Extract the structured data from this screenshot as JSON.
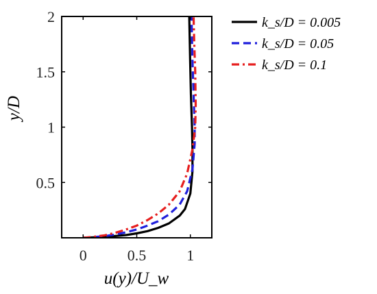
{
  "chart_data": {
    "type": "line",
    "xlabel": "u(y)/U_w",
    "ylabel": "y/D",
    "xlim": [
      -0.2,
      1.2
    ],
    "ylim": [
      0,
      2
    ],
    "xticks": [
      0,
      0.5,
      1
    ],
    "yticks": [
      0.5,
      1,
      1.5,
      2
    ],
    "xtick_labels": [
      "0",
      "0.5",
      "1"
    ],
    "ytick_labels": [
      "0.5",
      "1",
      "1.5",
      "2"
    ],
    "grid": false,
    "legend_position": "outside-top-right",
    "series": [
      {
        "name": "k_s/D = 0.005",
        "color": "#000000",
        "style": "solid",
        "points": [
          [
            0.0,
            0.0
          ],
          [
            0.1,
            0.004
          ],
          [
            0.2,
            0.009
          ],
          [
            0.3,
            0.016
          ],
          [
            0.4,
            0.025
          ],
          [
            0.5,
            0.04
          ],
          [
            0.6,
            0.06
          ],
          [
            0.7,
            0.09
          ],
          [
            0.8,
            0.13
          ],
          [
            0.9,
            0.2
          ],
          [
            0.95,
            0.26
          ],
          [
            1.0,
            0.4
          ],
          [
            1.02,
            0.6
          ],
          [
            1.02,
            0.8
          ],
          [
            1.015,
            1.0
          ],
          [
            1.005,
            1.3
          ],
          [
            0.998,
            1.6
          ],
          [
            0.99,
            2.0
          ]
        ]
      },
      {
        "name": "k_s/D = 0.05",
        "color": "#1f1fdc",
        "style": "dashed",
        "points": [
          [
            0.0,
            0.0
          ],
          [
            0.1,
            0.006
          ],
          [
            0.2,
            0.015
          ],
          [
            0.3,
            0.03
          ],
          [
            0.4,
            0.05
          ],
          [
            0.5,
            0.075
          ],
          [
            0.6,
            0.11
          ],
          [
            0.7,
            0.15
          ],
          [
            0.8,
            0.21
          ],
          [
            0.9,
            0.3
          ],
          [
            0.97,
            0.42
          ],
          [
            1.02,
            0.62
          ],
          [
            1.04,
            0.85
          ],
          [
            1.04,
            1.0
          ],
          [
            1.03,
            1.3
          ],
          [
            1.02,
            1.6
          ],
          [
            1.01,
            2.0
          ]
        ]
      },
      {
        "name": "k_s/D = 0.1",
        "color": "#e61e1e",
        "style": "dashdot",
        "points": [
          [
            0.0,
            0.0
          ],
          [
            0.1,
            0.009
          ],
          [
            0.2,
            0.022
          ],
          [
            0.3,
            0.045
          ],
          [
            0.4,
            0.075
          ],
          [
            0.5,
            0.11
          ],
          [
            0.6,
            0.16
          ],
          [
            0.7,
            0.22
          ],
          [
            0.8,
            0.3
          ],
          [
            0.9,
            0.42
          ],
          [
            0.97,
            0.58
          ],
          [
            1.02,
            0.8
          ],
          [
            1.045,
            1.0
          ],
          [
            1.05,
            1.2
          ],
          [
            1.045,
            1.5
          ],
          [
            1.035,
            1.8
          ],
          [
            1.03,
            2.0
          ]
        ]
      }
    ]
  }
}
